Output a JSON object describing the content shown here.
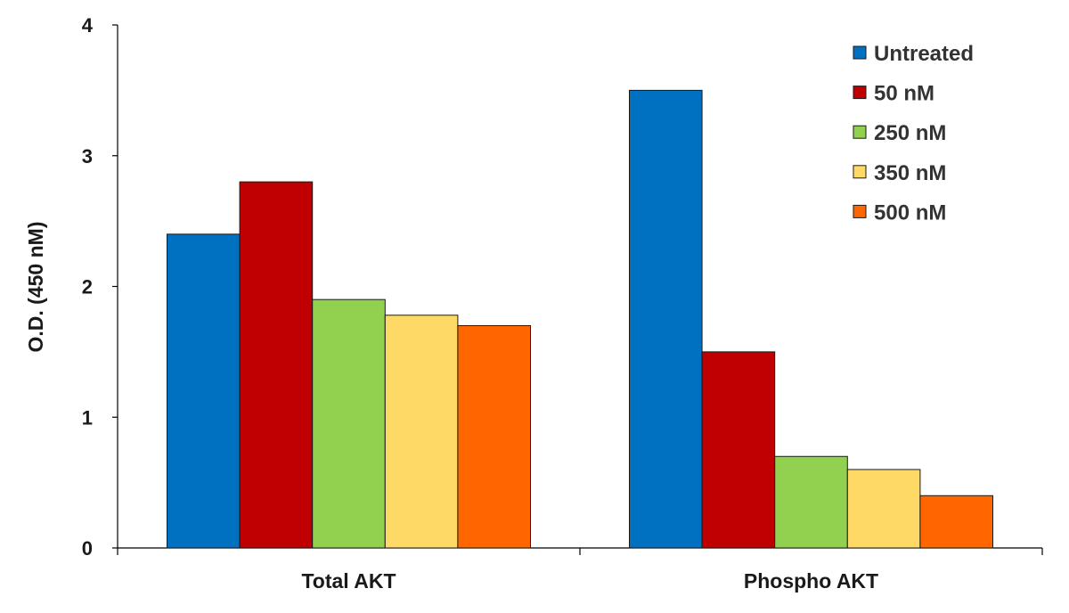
{
  "chart_data": {
    "type": "bar",
    "title": "",
    "xlabel": "",
    "ylabel": "O.D. (450 nM)",
    "ylim": [
      0,
      4
    ],
    "yticks": [
      "0",
      "1",
      "2",
      "3",
      "4"
    ],
    "grid": false,
    "legend_position": "top-right",
    "categories": [
      "Total AKT",
      "Phospho AKT"
    ],
    "series": [
      {
        "name": "Untreated",
        "color": "#0070C0",
        "values": [
          2.4,
          3.5
        ]
      },
      {
        "name": "50 nM",
        "color": "#C00000",
        "values": [
          2.8,
          1.5
        ]
      },
      {
        "name": "250 nM",
        "color": "#92D050",
        "values": [
          1.9,
          0.7
        ]
      },
      {
        "name": "350 nM",
        "color": "#FFD966",
        "values": [
          1.78,
          0.6
        ]
      },
      {
        "name": "500 nM",
        "color": "#FF6600",
        "values": [
          1.7,
          0.4
        ]
      }
    ]
  }
}
